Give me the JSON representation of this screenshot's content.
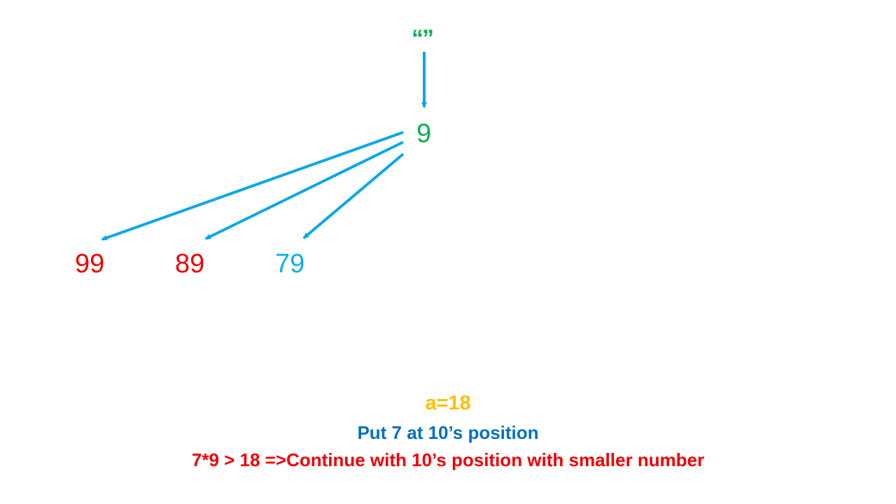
{
  "colors": {
    "arrow": "#0BA8E6",
    "green": "#00B050",
    "red": "#F00000",
    "blue_text": "#0070C0",
    "light_blue": "#10AEE8",
    "orange": "#FFC000"
  },
  "tree": {
    "root_label": "“”",
    "level1_label": "9",
    "children": [
      {
        "label": "99",
        "color": "#F00000"
      },
      {
        "label": "89",
        "color": "#F00000"
      },
      {
        "label": "79",
        "color": "#10AEE8"
      }
    ]
  },
  "captions": {
    "a_value": "a=18",
    "put_step": "Put 7 at 10’s position",
    "comparison": "7*9 > 18 =>Continue with 10’s position with smaller number"
  }
}
